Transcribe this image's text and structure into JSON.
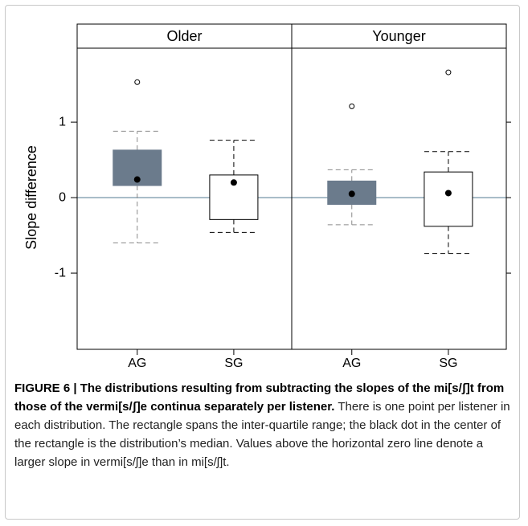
{
  "chart_data": {
    "type": "box",
    "y_label": "Slope difference",
    "ylim": [
      -2.01,
      1.98
    ],
    "yticks": [
      -1,
      0,
      1
    ],
    "reference_line": 0,
    "reference_color": "#8aa4b5",
    "categories": [
      "AG",
      "SG"
    ],
    "colors": [
      "#6b7b8c",
      "#ffffff"
    ],
    "whisker_colors": [
      "#8a8a8a",
      "#000000"
    ],
    "panels": [
      {
        "name": "Older",
        "boxes": [
          {
            "whisker_low": -0.6,
            "q1": 0.16,
            "median": 0.24,
            "q3": 0.63,
            "whisker_high": 0.88,
            "outliers": [
              1.53
            ]
          },
          {
            "whisker_low": -0.46,
            "q1": -0.29,
            "median": 0.2,
            "q3": 0.3,
            "whisker_high": 0.76,
            "outliers": []
          }
        ]
      },
      {
        "name": "Younger",
        "boxes": [
          {
            "whisker_low": -0.36,
            "q1": -0.09,
            "median": 0.05,
            "q3": 0.22,
            "whisker_high": 0.37,
            "outliers": [
              1.21
            ]
          },
          {
            "whisker_low": -0.74,
            "q1": -0.38,
            "median": 0.06,
            "q3": 0.34,
            "whisker_high": 0.61,
            "outliers": [
              1.66
            ]
          }
        ]
      }
    ]
  },
  "caption": {
    "label": "FIGURE 6 | The distributions resulting from subtracting the slopes of the mi[s/ʃ]t from those of the vermi[s/ʃ]e continua separately per listener.",
    "text": " There is one point per listener in each distribution. The rectangle spans the inter-quartile range; the black dot in the center of the rectangle is the distribution’s median. Values above the horizontal zero line denote a larger slope in vermi[s/ʃ]e than in mi[s/ʃ]t."
  }
}
